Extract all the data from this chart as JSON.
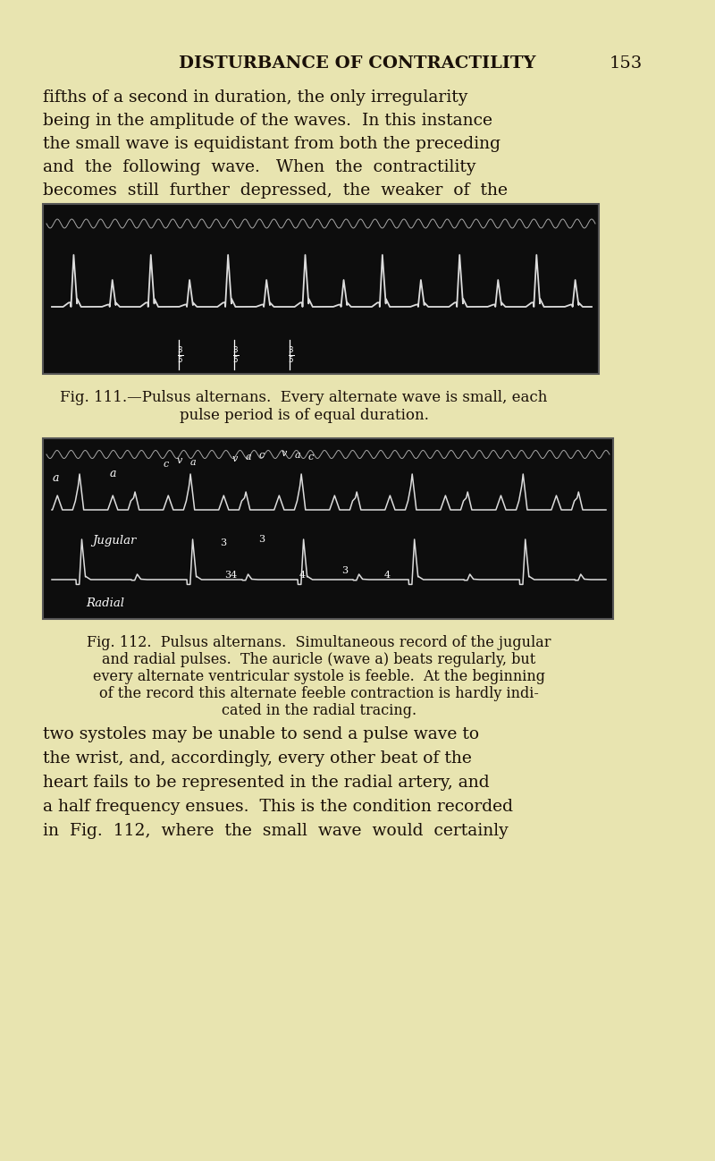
{
  "bg_color": "#e8e4b0",
  "page_width": 8.0,
  "page_height": 12.98,
  "header_text": "DISTURBANCE OF CONTRACTILITY",
  "header_page": "153",
  "body1_lines": [
    "fifths of a second in duration, the only irregularity",
    "being in the amplitude of the waves.  In this instance",
    "the small wave is equidistant from both the preceding",
    "and  the  following  wave.   When  the  contractility",
    "becomes  still  further  depressed,  the  weaker  of  the"
  ],
  "fig111_caption": [
    "Fig. 111.—Pulsus alternans.  Every alternate wave is small, each",
    "pulse period is of equal duration."
  ],
  "fig112_caption": [
    "Fig. 112.  Pulsus alternans.  Simultaneous record of the jugular",
    "and radial pulses.  The auricle (wave a) beats regularly, but",
    "every alternate ventricular systole is feeble.  At the beginning",
    "of the record this alternate feeble contraction is hardly indi-",
    "cated in the radial tracing."
  ],
  "body2_lines": [
    "two systoles may be unable to send a pulse wave to",
    "the wrist, and, accordingly, every other beat of the",
    "heart fails to be represented in the radial artery, and",
    "a half frequency ensues.  This is the condition recorded",
    "in  Fig.  112,  where  the  small  wave  would  certainly"
  ],
  "fig_bg": "#0d0d0d",
  "fig_line_color": "#dddddd",
  "text_color": "#1a1008",
  "white": "#ffffff"
}
